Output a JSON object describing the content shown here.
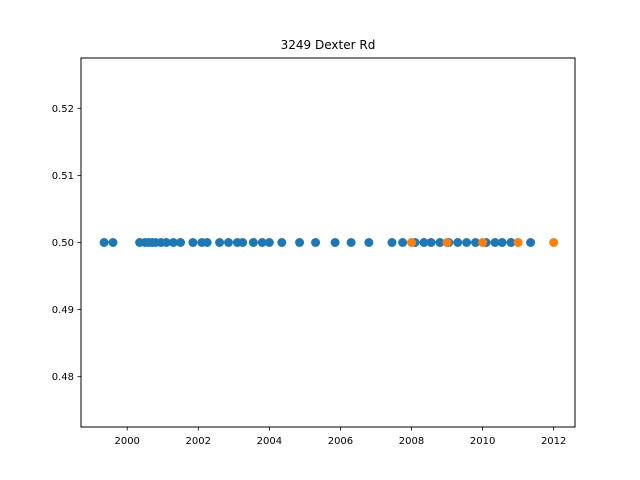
{
  "chart_data": {
    "type": "scatter",
    "title": "3249 Dexter Rd",
    "xlabel": "",
    "ylabel": "",
    "xlim": [
      1998.7,
      2012.6
    ],
    "ylim": [
      0.4725,
      0.5275
    ],
    "x_ticks": [
      2000,
      2002,
      2004,
      2006,
      2008,
      2010,
      2012
    ],
    "y_ticks": [
      0.48,
      0.49,
      0.5,
      0.51,
      0.52
    ],
    "y_tick_labels": [
      "0.48",
      "0.49",
      "0.50",
      "0.51",
      "0.52"
    ],
    "grid": false,
    "legend": "none",
    "series": [
      {
        "color": "#1f77b4",
        "points": [
          [
            1999.35,
            0.5
          ],
          [
            1999.6,
            0.5
          ],
          [
            2000.35,
            0.5
          ],
          [
            2000.5,
            0.5
          ],
          [
            2000.6,
            0.5
          ],
          [
            2000.7,
            0.5
          ],
          [
            2000.8,
            0.5
          ],
          [
            2000.95,
            0.5
          ],
          [
            2001.1,
            0.5
          ],
          [
            2001.3,
            0.5
          ],
          [
            2001.5,
            0.5
          ],
          [
            2001.85,
            0.5
          ],
          [
            2002.1,
            0.5
          ],
          [
            2002.25,
            0.5
          ],
          [
            2002.6,
            0.5
          ],
          [
            2002.85,
            0.5
          ],
          [
            2003.1,
            0.5
          ],
          [
            2003.25,
            0.5
          ],
          [
            2003.55,
            0.5
          ],
          [
            2003.8,
            0.5
          ],
          [
            2004.0,
            0.5
          ],
          [
            2004.35,
            0.5
          ],
          [
            2004.85,
            0.5
          ],
          [
            2005.3,
            0.5
          ],
          [
            2005.85,
            0.5
          ],
          [
            2006.3,
            0.5
          ],
          [
            2006.8,
            0.5
          ],
          [
            2007.45,
            0.5
          ],
          [
            2007.75,
            0.5
          ],
          [
            2008.1,
            0.5
          ],
          [
            2008.35,
            0.5
          ],
          [
            2008.55,
            0.5
          ],
          [
            2008.8,
            0.5
          ],
          [
            2009.05,
            0.5
          ],
          [
            2009.3,
            0.5
          ],
          [
            2009.55,
            0.5
          ],
          [
            2009.8,
            0.5
          ],
          [
            2010.1,
            0.5
          ],
          [
            2010.35,
            0.5
          ],
          [
            2010.55,
            0.5
          ],
          [
            2010.8,
            0.5
          ],
          [
            2011.35,
            0.5
          ]
        ]
      },
      {
        "color": "#ff7f0e",
        "points": [
          [
            2008.0,
            0.5
          ],
          [
            2009.0,
            0.5
          ],
          [
            2010.0,
            0.5
          ],
          [
            2011.0,
            0.5
          ],
          [
            2012.0,
            0.5
          ]
        ]
      }
    ]
  }
}
